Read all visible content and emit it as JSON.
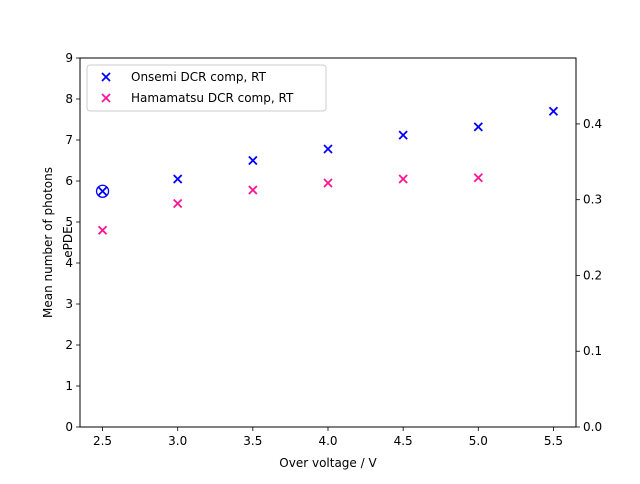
{
  "chart_data": {
    "type": "scatter",
    "xlabel": "Over voltage / V",
    "ylabel_left": "Mean number of photons",
    "ylabel_right": "ePDE",
    "xlim": [
      2.35,
      5.65
    ],
    "ylim_left": [
      0,
      9
    ],
    "ylim_right": [
      0,
      0.487
    ],
    "x_ticks": [
      2.5,
      3.0,
      3.5,
      4.0,
      4.5,
      5.0,
      5.5
    ],
    "x_tick_labels": [
      "2.5",
      "3.0",
      "3.5",
      "4.0",
      "4.5",
      "5.0",
      "5.5"
    ],
    "y_left_ticks": [
      0,
      1,
      2,
      3,
      4,
      5,
      6,
      7,
      8,
      9
    ],
    "y_left_tick_labels": [
      "0",
      "1",
      "2",
      "3",
      "4",
      "5",
      "6",
      "7",
      "8",
      "9"
    ],
    "y_right_ticks": [
      0.0,
      0.1,
      0.2,
      0.3,
      0.4
    ],
    "y_right_tick_labels": [
      "0.0",
      "0.1",
      "0.2",
      "0.3",
      "0.4"
    ],
    "grid": false,
    "legend_position": "top-left",
    "marker": "x",
    "series": [
      {
        "name": "Onsemi DCR comp, RT",
        "color": "#0000ff",
        "x": [
          2.5,
          3.0,
          3.5,
          4.0,
          4.5,
          5.0,
          5.5
        ],
        "y": [
          5.75,
          6.05,
          6.5,
          6.78,
          7.12,
          7.32,
          7.7
        ]
      },
      {
        "name": "Hamamatsu DCR comp, RT",
        "color": "#ff1493",
        "x": [
          2.5,
          3.0,
          3.5,
          4.0,
          4.5,
          5.0
        ],
        "y": [
          4.8,
          5.45,
          5.78,
          5.95,
          6.05,
          6.08
        ]
      }
    ],
    "annotations": [
      {
        "type": "circle-marker",
        "x": 2.5,
        "y": 5.75,
        "color": "#0000ff"
      }
    ]
  }
}
